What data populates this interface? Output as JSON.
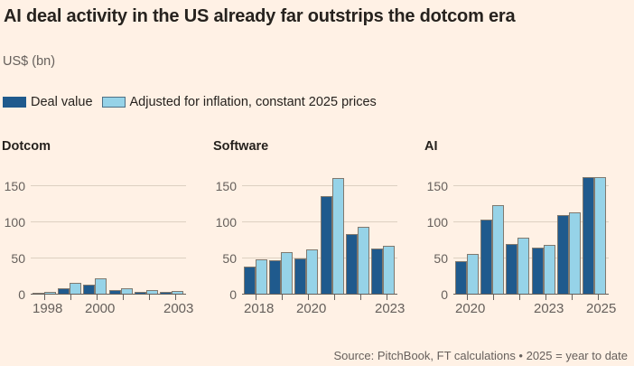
{
  "title": "AI deal activity in the US already far outstrips the dotcom era",
  "subtitle": "US$ (bn)",
  "legend": [
    {
      "label": "Deal value",
      "color": "#1f5a8d"
    },
    {
      "label": "Adjusted for inflation, constant 2025 prices",
      "color": "#96d3e8"
    }
  ],
  "footer": "Source: PitchBook, FT calculations • 2025 = year to date",
  "colors": {
    "background": "#fff1e5",
    "dark_blue": "#1f5a8d",
    "light_blue": "#96d3e8",
    "bar_border": "#80796f",
    "gridline": "#ddd0c1",
    "axis": "#66605c",
    "text_dark": "#26221e",
    "text_grey": "#66605c"
  },
  "chart_data": [
    {
      "type": "bar",
      "title": "Dotcom",
      "categories": [
        "1998",
        "1999",
        "2000",
        "2001",
        "2002",
        "2003"
      ],
      "x_tick_labels": {
        "0": "1998",
        "2": "2000",
        "5": "2003"
      },
      "series": [
        {
          "name": "Deal value",
          "values": [
            1,
            8,
            12,
            5,
            3,
            2
          ]
        },
        {
          "name": "Adjusted for inflation, constant 2025 prices",
          "values": [
            2,
            15,
            21,
            8,
            5,
            4
          ]
        }
      ],
      "yticks": [
        0,
        50,
        100,
        150
      ],
      "ylim": [
        0,
        170
      ],
      "grid": true,
      "legend_position": "top"
    },
    {
      "type": "bar",
      "title": "Software",
      "categories": [
        "2018",
        "2019",
        "2020",
        "2021",
        "2022",
        "2023"
      ],
      "x_tick_labels": {
        "0": "2018",
        "2": "2020",
        "5": "2023"
      },
      "series": [
        {
          "name": "Deal value",
          "values": [
            37,
            46,
            49,
            135,
            83,
            63
          ]
        },
        {
          "name": "Adjusted for inflation, constant 2025 prices",
          "values": [
            47,
            58,
            61,
            160,
            92,
            66
          ]
        }
      ],
      "yticks": [
        0,
        50,
        100,
        150
      ],
      "ylim": [
        0,
        170
      ],
      "grid": true,
      "legend_position": "top"
    },
    {
      "type": "bar",
      "title": "AI",
      "categories": [
        "2020",
        "2021",
        "2022",
        "2023",
        "2024",
        "2025"
      ],
      "x_tick_labels": {
        "0": "2020",
        "3": "2023",
        "5": "2025"
      },
      "series": [
        {
          "name": "Deal value",
          "values": [
            45,
            103,
            69,
            64,
            109,
            161
          ]
        },
        {
          "name": "Adjusted for inflation, constant 2025 prices",
          "values": [
            55,
            123,
            77,
            68,
            112,
            161
          ]
        }
      ],
      "yticks": [
        0,
        50,
        100,
        150
      ],
      "ylim": [
        0,
        170
      ],
      "grid": true,
      "legend_position": "top"
    }
  ]
}
